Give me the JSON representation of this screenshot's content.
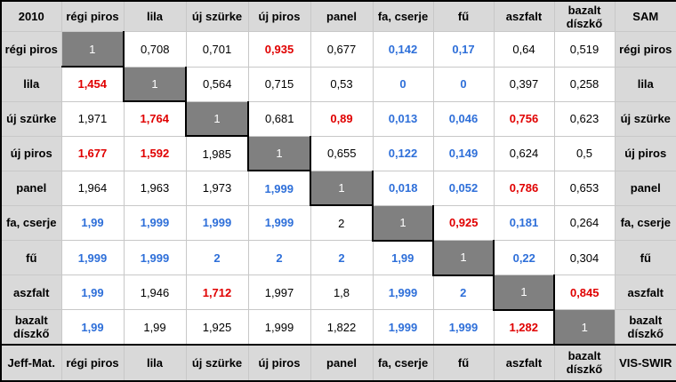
{
  "corners": {
    "top_left": "2010",
    "top_right": "SAM",
    "bottom_left": "Jeff-Mat.",
    "bottom_right": "VIS-SWIR"
  },
  "labels": [
    "régi piros",
    "lila",
    "új szürke",
    "új piros",
    "panel",
    "fa, cserje",
    "fű",
    "aszfalt",
    "bazalt díszkő"
  ],
  "rows": [
    [
      {
        "v": "1",
        "c": "diag"
      },
      {
        "v": "0,708",
        "c": "black"
      },
      {
        "v": "0,701",
        "c": "black"
      },
      {
        "v": "0,935",
        "c": "red"
      },
      {
        "v": "0,677",
        "c": "black"
      },
      {
        "v": "0,142",
        "c": "blue"
      },
      {
        "v": "0,17",
        "c": "blue"
      },
      {
        "v": "0,64",
        "c": "black"
      },
      {
        "v": "0,519",
        "c": "black"
      }
    ],
    [
      {
        "v": "1,454",
        "c": "red"
      },
      {
        "v": "1",
        "c": "diag"
      },
      {
        "v": "0,564",
        "c": "black"
      },
      {
        "v": "0,715",
        "c": "black"
      },
      {
        "v": "0,53",
        "c": "black"
      },
      {
        "v": "0",
        "c": "blue"
      },
      {
        "v": "0",
        "c": "blue"
      },
      {
        "v": "0,397",
        "c": "black"
      },
      {
        "v": "0,258",
        "c": "black"
      }
    ],
    [
      {
        "v": "1,971",
        "c": "black"
      },
      {
        "v": "1,764",
        "c": "red"
      },
      {
        "v": "1",
        "c": "diag"
      },
      {
        "v": "0,681",
        "c": "black"
      },
      {
        "v": "0,89",
        "c": "red"
      },
      {
        "v": "0,013",
        "c": "blue"
      },
      {
        "v": "0,046",
        "c": "blue"
      },
      {
        "v": "0,756",
        "c": "red"
      },
      {
        "v": "0,623",
        "c": "black"
      }
    ],
    [
      {
        "v": "1,677",
        "c": "red"
      },
      {
        "v": "1,592",
        "c": "red"
      },
      {
        "v": "1,985",
        "c": "black"
      },
      {
        "v": "1",
        "c": "diag"
      },
      {
        "v": "0,655",
        "c": "black"
      },
      {
        "v": "0,122",
        "c": "blue"
      },
      {
        "v": "0,149",
        "c": "blue"
      },
      {
        "v": "0,624",
        "c": "black"
      },
      {
        "v": "0,5",
        "c": "black"
      }
    ],
    [
      {
        "v": "1,964",
        "c": "black"
      },
      {
        "v": "1,963",
        "c": "black"
      },
      {
        "v": "1,973",
        "c": "black"
      },
      {
        "v": "1,999",
        "c": "blue"
      },
      {
        "v": "1",
        "c": "diag"
      },
      {
        "v": "0,018",
        "c": "blue"
      },
      {
        "v": "0,052",
        "c": "blue"
      },
      {
        "v": "0,786",
        "c": "red"
      },
      {
        "v": "0,653",
        "c": "black"
      }
    ],
    [
      {
        "v": "1,99",
        "c": "blue"
      },
      {
        "v": "1,999",
        "c": "blue"
      },
      {
        "v": "1,999",
        "c": "blue"
      },
      {
        "v": "1,999",
        "c": "blue"
      },
      {
        "v": "2",
        "c": "black"
      },
      {
        "v": "1",
        "c": "diag"
      },
      {
        "v": "0,925",
        "c": "red"
      },
      {
        "v": "0,181",
        "c": "blue"
      },
      {
        "v": "0,264",
        "c": "black"
      }
    ],
    [
      {
        "v": "1,999",
        "c": "blue"
      },
      {
        "v": "1,999",
        "c": "blue"
      },
      {
        "v": "2",
        "c": "blue"
      },
      {
        "v": "2",
        "c": "blue"
      },
      {
        "v": "2",
        "c": "blue"
      },
      {
        "v": "1,99",
        "c": "blue"
      },
      {
        "v": "1",
        "c": "diag"
      },
      {
        "v": "0,22",
        "c": "blue"
      },
      {
        "v": "0,304",
        "c": "black"
      }
    ],
    [
      {
        "v": "1,99",
        "c": "blue"
      },
      {
        "v": "1,946",
        "c": "black"
      },
      {
        "v": "1,712",
        "c": "red"
      },
      {
        "v": "1,997",
        "c": "black"
      },
      {
        "v": "1,8",
        "c": "black"
      },
      {
        "v": "1,999",
        "c": "blue"
      },
      {
        "v": "2",
        "c": "blue"
      },
      {
        "v": "1",
        "c": "diag"
      },
      {
        "v": "0,845",
        "c": "red"
      }
    ],
    [
      {
        "v": "1,99",
        "c": "blue"
      },
      {
        "v": "1,99",
        "c": "black"
      },
      {
        "v": "1,925",
        "c": "black"
      },
      {
        "v": "1,999",
        "c": "black"
      },
      {
        "v": "1,822",
        "c": "black"
      },
      {
        "v": "1,999",
        "c": "blue"
      },
      {
        "v": "1,999",
        "c": "blue"
      },
      {
        "v": "1,282",
        "c": "red"
      },
      {
        "v": "1",
        "c": "diag"
      }
    ]
  ],
  "colors": {
    "header_bg": "#d9d9d9",
    "diag_bg": "#808080",
    "red": "#e00000",
    "blue": "#2e6fd9",
    "border": "#000000"
  }
}
